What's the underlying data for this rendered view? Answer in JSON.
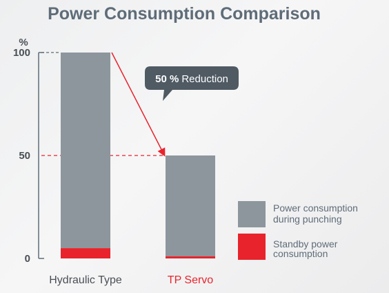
{
  "chart_data": {
    "type": "bar",
    "title": "Power Consumption Comparison",
    "ylabel": "%",
    "ylim": [
      0,
      100
    ],
    "yticks": [
      "0",
      "50",
      "100"
    ],
    "categories": [
      "Hydraulic Type",
      "TP Servo"
    ],
    "series": [
      {
        "name": "Standby power consumption",
        "values": [
          5,
          1
        ]
      },
      {
        "name": "Power consumption during punching",
        "values": [
          95,
          49
        ]
      }
    ],
    "annotation": {
      "bold": "50 %",
      "text": "Reduction"
    },
    "legend_position": "bottom-right",
    "colors": {
      "punching": "#8d969d",
      "standby": "#e8232b",
      "hydraulic_label": "#4a4f55",
      "servo_label": "#e8232b",
      "callout": "#4f5a63",
      "arrow": "#e8232b",
      "axis": "#5e6c78"
    }
  }
}
